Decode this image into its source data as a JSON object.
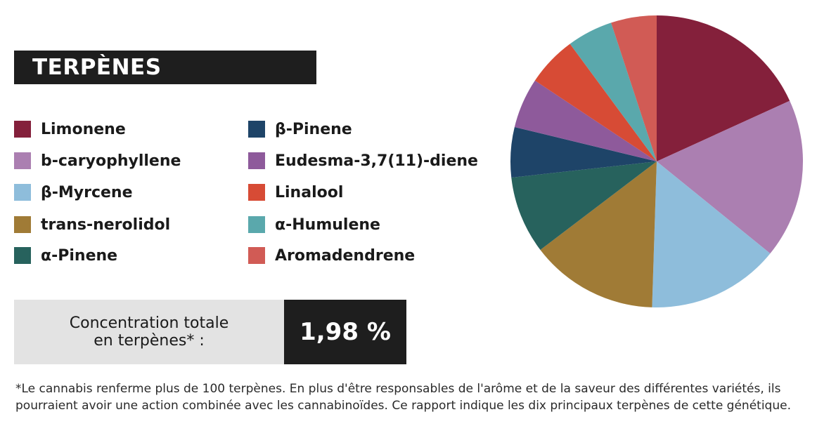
{
  "header": {
    "title": "TERPÈNES"
  },
  "concentration": {
    "label": "Concentration totale\nen terpènes* :",
    "value": "1,98 %"
  },
  "footnote": "*Le cannabis renferme plus de 100 terpènes. En plus d'être responsables de l'arôme et de la saveur des différentes variétés, ils pourraient avoir une action combinée avec les cannabinoïdes. Ce rapport indique les dix principaux terpènes de cette génétique.",
  "chart_data": {
    "type": "pie",
    "title": "TERPÈNES",
    "legend_position": "left",
    "categories": [
      "Limonene",
      "b-caryophyllene",
      "β-Myrcene",
      "trans-nerolidol",
      "α-Pinene",
      "β-Pinene",
      "Eudesma-3,7(11)-diene",
      "Linalool",
      "α-Humulene",
      "Aromadendrene"
    ],
    "values": [
      18.0,
      17.5,
      14.5,
      14.0,
      8.5,
      5.5,
      5.5,
      5.5,
      5.0,
      5.0
    ],
    "unit": "%",
    "colors": [
      "#84203b",
      "#ab7fb1",
      "#8ebddb",
      "#a07b36",
      "#27625d",
      "#1e4468",
      "#8e5a9b",
      "#d74b35",
      "#5aa8ac",
      "#d15b55"
    ]
  }
}
